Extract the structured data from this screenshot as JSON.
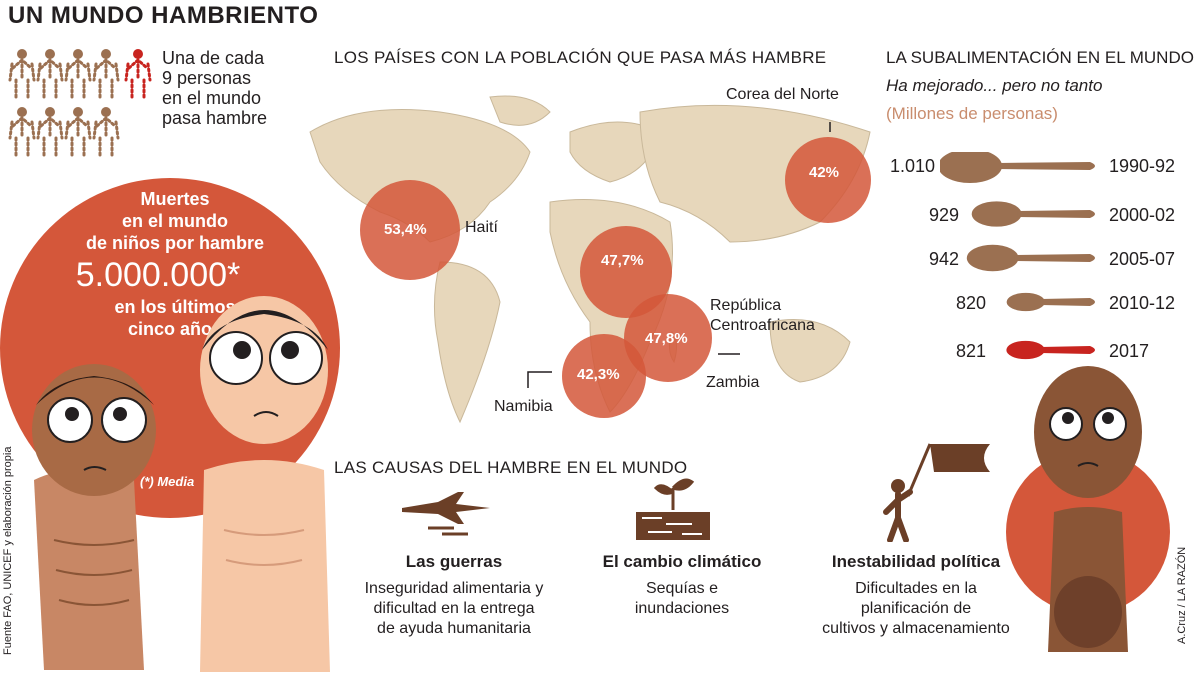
{
  "title": "UN MUNDO HAMBRIENTO",
  "stat": {
    "text_lines": [
      "Una de cada",
      "9 personas",
      "en el mundo",
      "pasa hambre"
    ]
  },
  "deaths": {
    "head_lines": [
      "Muertes",
      "en el mundo",
      "de niños por hambre"
    ],
    "number": "5.000.000*",
    "tail_lines": [
      "en los últimos",
      "cinco años"
    ],
    "note": "(*) Media"
  },
  "map": {
    "title": "LOS PAÍSES CON LA POBLACIÓN QUE PASA MÁS HAMBRE",
    "countries": [
      {
        "name": "Haití",
        "pct": "53,4%"
      },
      {
        "name": "Corea del Norte",
        "pct": "42%"
      },
      {
        "name": "República Centroafricana",
        "name_lines": [
          "República",
          "Centroafricana"
        ],
        "pct": "47,7%"
      },
      {
        "name": "Zambia",
        "pct": "47,8%"
      },
      {
        "name": "Namibia",
        "pct": "42,3%"
      }
    ]
  },
  "undernourishment": {
    "title": "LA SUBALIMENTACIÓN EN EL MUNDO",
    "subtitle": "Ha mejorado... pero no tanto",
    "unit": "(Millones de personas)",
    "rows": [
      {
        "value": "1.010",
        "period": "1990-92",
        "amount": 1010,
        "color": "#9b7051"
      },
      {
        "value": "929",
        "period": "2000-02",
        "amount": 929,
        "color": "#9b7051"
      },
      {
        "value": "942",
        "period": "2005-07",
        "amount": 942,
        "color": "#9b7051"
      },
      {
        "value": "820",
        "period": "2010-12",
        "amount": 820,
        "color": "#9b7051"
      },
      {
        "value": "821",
        "period": "2017",
        "amount": 821,
        "color": "#c8241f"
      }
    ]
  },
  "causes": {
    "title": "LAS CAUSAS DEL HAMBRE EN EL MUNDO",
    "items": [
      {
        "name": "Las guerras",
        "desc_lines": [
          "Inseguridad alimentaria y",
          "dificultad en la entrega",
          "de ayuda humanitaria"
        ],
        "icon": "fighter-jet-icon"
      },
      {
        "name": "El cambio climático",
        "desc_lines": [
          "Sequías e",
          "inundaciones"
        ],
        "icon": "cracked-earth-icon"
      },
      {
        "name": "Inestabilidad política",
        "desc_lines": [
          "Dificultades en la",
          "planificación de",
          "cultivos y almacenamiento"
        ],
        "icon": "flag-person-icon"
      }
    ]
  },
  "source": "Fuente FAO, UNICEF y elaboración propia",
  "credit": "A.Cruz / LA RAZÓN",
  "colors": {
    "accent": "#d4573a",
    "brown": "#9b7051",
    "land": "#e7d7bb",
    "highlight": "#c8241f"
  }
}
